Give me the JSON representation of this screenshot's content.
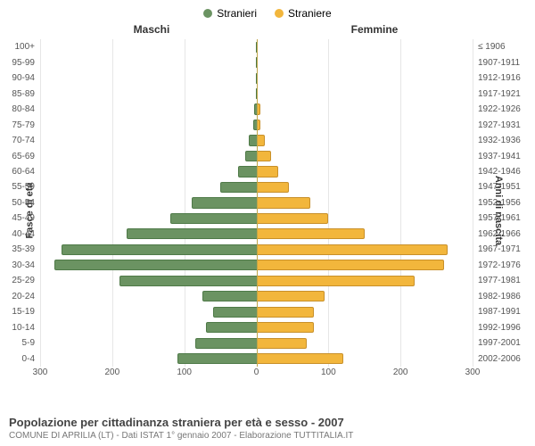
{
  "chart": {
    "type": "population-pyramid",
    "legend": [
      {
        "label": "Stranieri",
        "color": "#6b9362"
      },
      {
        "label": "Straniere",
        "color": "#f2b63c"
      }
    ],
    "column_headers": {
      "left": "Maschi",
      "right": "Femmine"
    },
    "y_axis_left_title": "Fasce di età",
    "y_axis_right_title": "Anni di nascita",
    "x_max_each_side": 300,
    "x_ticks": [
      300,
      200,
      100,
      0,
      100,
      200,
      300
    ],
    "center_line_color": "#bfa64a",
    "grid_color": "#e6e6e6",
    "bar_left_color": "#6b9362",
    "bar_left_border": "#4f7a48",
    "bar_right_color": "#f2b63c",
    "bar_right_border": "#c8902a",
    "background_color": "#ffffff",
    "label_fontsize": 10,
    "rows": [
      {
        "age": "100+",
        "birth": "≤ 1906",
        "m": 0,
        "f": 0
      },
      {
        "age": "95-99",
        "birth": "1907-1911",
        "m": 0,
        "f": 0
      },
      {
        "age": "90-94",
        "birth": "1912-1916",
        "m": 0,
        "f": 1
      },
      {
        "age": "85-89",
        "birth": "1917-1921",
        "m": 1,
        "f": 1
      },
      {
        "age": "80-84",
        "birth": "1922-1926",
        "m": 3,
        "f": 5
      },
      {
        "age": "75-79",
        "birth": "1927-1931",
        "m": 4,
        "f": 5
      },
      {
        "age": "70-74",
        "birth": "1932-1936",
        "m": 10,
        "f": 12
      },
      {
        "age": "65-69",
        "birth": "1937-1941",
        "m": 15,
        "f": 20
      },
      {
        "age": "60-64",
        "birth": "1942-1946",
        "m": 25,
        "f": 30
      },
      {
        "age": "55-59",
        "birth": "1947-1951",
        "m": 50,
        "f": 45
      },
      {
        "age": "50-54",
        "birth": "1952-1956",
        "m": 90,
        "f": 75
      },
      {
        "age": "45-49",
        "birth": "1957-1961",
        "m": 120,
        "f": 100
      },
      {
        "age": "40-44",
        "birth": "1962-1966",
        "m": 180,
        "f": 150
      },
      {
        "age": "35-39",
        "birth": "1967-1971",
        "m": 270,
        "f": 265
      },
      {
        "age": "30-34",
        "birth": "1972-1976",
        "m": 280,
        "f": 260
      },
      {
        "age": "25-29",
        "birth": "1977-1981",
        "m": 190,
        "f": 220
      },
      {
        "age": "20-24",
        "birth": "1982-1986",
        "m": 75,
        "f": 95
      },
      {
        "age": "15-19",
        "birth": "1987-1991",
        "m": 60,
        "f": 80
      },
      {
        "age": "10-14",
        "birth": "1992-1996",
        "m": 70,
        "f": 80
      },
      {
        "age": "5-9",
        "birth": "1997-2001",
        "m": 85,
        "f": 70
      },
      {
        "age": "0-4",
        "birth": "2002-2006",
        "m": 110,
        "f": 120
      }
    ]
  },
  "footer": {
    "title": "Popolazione per cittadinanza straniera per età e sesso - 2007",
    "subtitle": "COMUNE DI APRILIA (LT) - Dati ISTAT 1° gennaio 2007 - Elaborazione TUTTITALIA.IT"
  }
}
